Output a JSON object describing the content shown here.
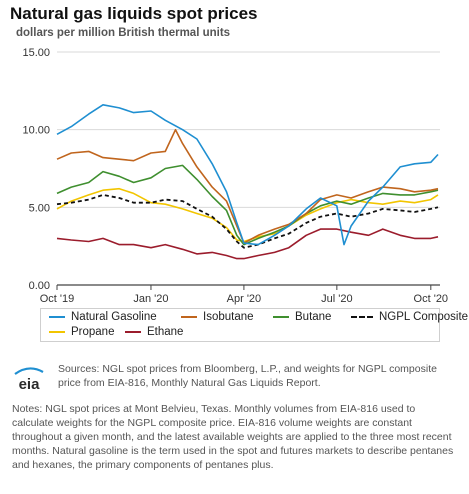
{
  "header": {
    "title": "Natural gas liquids spot prices",
    "subtitle": "dollars per million British thermal units"
  },
  "chart_data": {
    "type": "line",
    "x_ticks": [
      "Oct '19",
      "Jan '20",
      "Apr '20",
      "Jul '20",
      "Oct '20"
    ],
    "y_ticks": [
      "0.00",
      "5.00",
      "10.00",
      "15.00"
    ],
    "ylim": [
      0,
      15
    ],
    "grid": true,
    "legend_position": "bottom",
    "series": [
      {
        "name": "Natural Gasoline",
        "color": "#1f8fd1",
        "dashed": false,
        "points": [
          [
            "2019-10-01",
            9.7
          ],
          [
            "2019-10-15",
            10.2
          ],
          [
            "2019-11-01",
            11.0
          ],
          [
            "2019-11-15",
            11.6
          ],
          [
            "2019-12-01",
            11.4
          ],
          [
            "2019-12-15",
            11.1
          ],
          [
            "2020-01-01",
            11.2
          ],
          [
            "2020-01-15",
            10.6
          ],
          [
            "2020-02-01",
            10.0
          ],
          [
            "2020-02-15",
            9.4
          ],
          [
            "2020-03-01",
            7.8
          ],
          [
            "2020-03-15",
            6.0
          ],
          [
            "2020-03-25",
            4.0
          ],
          [
            "2020-04-01",
            2.7
          ],
          [
            "2020-04-15",
            2.6
          ],
          [
            "2020-05-01",
            3.2
          ],
          [
            "2020-05-15",
            3.8
          ],
          [
            "2020-06-01",
            4.9
          ],
          [
            "2020-06-15",
            5.6
          ],
          [
            "2020-07-01",
            5.1
          ],
          [
            "2020-07-08",
            2.6
          ],
          [
            "2020-07-15",
            3.8
          ],
          [
            "2020-08-01",
            5.4
          ],
          [
            "2020-08-15",
            6.3
          ],
          [
            "2020-09-01",
            7.6
          ],
          [
            "2020-09-15",
            7.8
          ],
          [
            "2020-10-01",
            7.9
          ],
          [
            "2020-10-08",
            8.4
          ]
        ]
      },
      {
        "name": "Isobutane",
        "color": "#c0651d",
        "dashed": false,
        "points": [
          [
            "2019-10-01",
            8.1
          ],
          [
            "2019-10-15",
            8.5
          ],
          [
            "2019-11-01",
            8.6
          ],
          [
            "2019-11-15",
            8.2
          ],
          [
            "2019-12-01",
            8.1
          ],
          [
            "2019-12-15",
            8.0
          ],
          [
            "2020-01-01",
            8.5
          ],
          [
            "2020-01-15",
            8.6
          ],
          [
            "2020-01-25",
            10.0
          ],
          [
            "2020-02-01",
            9.1
          ],
          [
            "2020-02-15",
            7.6
          ],
          [
            "2020-03-01",
            6.3
          ],
          [
            "2020-03-15",
            5.4
          ],
          [
            "2020-03-25",
            3.8
          ],
          [
            "2020-04-01",
            2.7
          ],
          [
            "2020-04-15",
            3.2
          ],
          [
            "2020-05-01",
            3.6
          ],
          [
            "2020-05-15",
            3.9
          ],
          [
            "2020-06-01",
            4.6
          ],
          [
            "2020-06-15",
            5.5
          ],
          [
            "2020-07-01",
            5.8
          ],
          [
            "2020-07-15",
            5.6
          ],
          [
            "2020-08-01",
            6.0
          ],
          [
            "2020-08-15",
            6.3
          ],
          [
            "2020-09-01",
            6.2
          ],
          [
            "2020-09-15",
            6.0
          ],
          [
            "2020-10-01",
            6.1
          ],
          [
            "2020-10-08",
            6.2
          ]
        ]
      },
      {
        "name": "Butane",
        "color": "#3f8f2f",
        "dashed": false,
        "points": [
          [
            "2019-10-01",
            5.9
          ],
          [
            "2019-10-15",
            6.3
          ],
          [
            "2019-11-01",
            6.6
          ],
          [
            "2019-11-15",
            7.3
          ],
          [
            "2019-12-01",
            7.0
          ],
          [
            "2019-12-15",
            6.6
          ],
          [
            "2020-01-01",
            6.9
          ],
          [
            "2020-01-15",
            7.5
          ],
          [
            "2020-02-01",
            7.7
          ],
          [
            "2020-02-15",
            6.8
          ],
          [
            "2020-03-01",
            5.7
          ],
          [
            "2020-03-15",
            4.8
          ],
          [
            "2020-03-25",
            3.2
          ],
          [
            "2020-04-01",
            2.6
          ],
          [
            "2020-04-15",
            3.0
          ],
          [
            "2020-05-01",
            3.4
          ],
          [
            "2020-05-15",
            3.8
          ],
          [
            "2020-06-01",
            4.6
          ],
          [
            "2020-06-15",
            5.1
          ],
          [
            "2020-07-01",
            5.4
          ],
          [
            "2020-07-15",
            5.2
          ],
          [
            "2020-08-01",
            5.6
          ],
          [
            "2020-08-15",
            5.9
          ],
          [
            "2020-09-01",
            5.8
          ],
          [
            "2020-09-15",
            5.8
          ],
          [
            "2020-10-01",
            6.0
          ],
          [
            "2020-10-08",
            6.1
          ]
        ]
      },
      {
        "name": "NGPL Composite",
        "color": "#111111",
        "dashed": true,
        "points": [
          [
            "2019-10-01",
            5.2
          ],
          [
            "2019-10-15",
            5.3
          ],
          [
            "2019-11-01",
            5.5
          ],
          [
            "2019-11-15",
            5.8
          ],
          [
            "2019-12-01",
            5.6
          ],
          [
            "2019-12-15",
            5.3
          ],
          [
            "2020-01-01",
            5.3
          ],
          [
            "2020-01-15",
            5.5
          ],
          [
            "2020-02-01",
            5.4
          ],
          [
            "2020-02-15",
            4.9
          ],
          [
            "2020-03-01",
            4.4
          ],
          [
            "2020-03-15",
            3.6
          ],
          [
            "2020-03-25",
            2.8
          ],
          [
            "2020-04-01",
            2.4
          ],
          [
            "2020-04-15",
            2.6
          ],
          [
            "2020-05-01",
            3.0
          ],
          [
            "2020-05-15",
            3.3
          ],
          [
            "2020-06-01",
            4.0
          ],
          [
            "2020-06-15",
            4.4
          ],
          [
            "2020-07-01",
            4.6
          ],
          [
            "2020-07-15",
            4.4
          ],
          [
            "2020-08-01",
            4.6
          ],
          [
            "2020-08-15",
            4.9
          ],
          [
            "2020-09-01",
            4.8
          ],
          [
            "2020-09-15",
            4.7
          ],
          [
            "2020-10-01",
            4.9
          ],
          [
            "2020-10-08",
            5.0
          ]
        ]
      },
      {
        "name": "Propane",
        "color": "#f2c500",
        "dashed": false,
        "points": [
          [
            "2019-10-01",
            4.9
          ],
          [
            "2019-10-15",
            5.4
          ],
          [
            "2019-11-01",
            5.8
          ],
          [
            "2019-11-15",
            6.1
          ],
          [
            "2019-12-01",
            6.2
          ],
          [
            "2019-12-15",
            5.9
          ],
          [
            "2020-01-01",
            5.3
          ],
          [
            "2020-01-15",
            5.2
          ],
          [
            "2020-02-01",
            4.9
          ],
          [
            "2020-02-15",
            4.6
          ],
          [
            "2020-03-01",
            4.3
          ],
          [
            "2020-03-15",
            3.7
          ],
          [
            "2020-03-25",
            2.9
          ],
          [
            "2020-04-01",
            2.8
          ],
          [
            "2020-04-15",
            3.1
          ],
          [
            "2020-05-01",
            3.3
          ],
          [
            "2020-05-15",
            3.8
          ],
          [
            "2020-06-01",
            4.5
          ],
          [
            "2020-06-15",
            4.9
          ],
          [
            "2020-07-01",
            5.3
          ],
          [
            "2020-07-15",
            5.5
          ],
          [
            "2020-08-01",
            5.3
          ],
          [
            "2020-08-15",
            5.2
          ],
          [
            "2020-09-01",
            5.4
          ],
          [
            "2020-09-15",
            5.3
          ],
          [
            "2020-10-01",
            5.5
          ],
          [
            "2020-10-08",
            5.8
          ]
        ]
      },
      {
        "name": "Ethane",
        "color": "#9b1c2c",
        "dashed": false,
        "points": [
          [
            "2019-10-01",
            3.0
          ],
          [
            "2019-10-15",
            2.9
          ],
          [
            "2019-11-01",
            2.8
          ],
          [
            "2019-11-15",
            3.0
          ],
          [
            "2019-12-01",
            2.6
          ],
          [
            "2019-12-15",
            2.6
          ],
          [
            "2020-01-01",
            2.4
          ],
          [
            "2020-01-15",
            2.6
          ],
          [
            "2020-02-01",
            2.3
          ],
          [
            "2020-02-15",
            2.0
          ],
          [
            "2020-03-01",
            2.1
          ],
          [
            "2020-03-15",
            1.9
          ],
          [
            "2020-03-25",
            1.7
          ],
          [
            "2020-04-01",
            1.7
          ],
          [
            "2020-04-15",
            1.9
          ],
          [
            "2020-05-01",
            2.1
          ],
          [
            "2020-05-15",
            2.4
          ],
          [
            "2020-06-01",
            3.2
          ],
          [
            "2020-06-15",
            3.6
          ],
          [
            "2020-07-01",
            3.6
          ],
          [
            "2020-07-15",
            3.4
          ],
          [
            "2020-08-01",
            3.2
          ],
          [
            "2020-08-15",
            3.6
          ],
          [
            "2020-09-01",
            3.2
          ],
          [
            "2020-09-15",
            3.0
          ],
          [
            "2020-10-01",
            3.0
          ],
          [
            "2020-10-08",
            3.1
          ]
        ]
      }
    ]
  },
  "footer": {
    "logo_text": "eia",
    "sources": "Sources: NGL spot prices from Bloomberg, L.P., and weights for NGPL composite price from EIA-816, Monthly Natural Gas Liquids Report.",
    "notes": "Notes: NGL spot prices at Mont Belvieu, Texas. Monthly volumes from EIA-816 used to calculate weights for the NGPL composite price. EIA-816 volume weights are constant throughout a given month, and the latest available weights are applied to the three most recent months. Natural gasoline is the term used in the spot and futures markets to describe pentanes and hexanes, the primary components of pentanes plus."
  }
}
